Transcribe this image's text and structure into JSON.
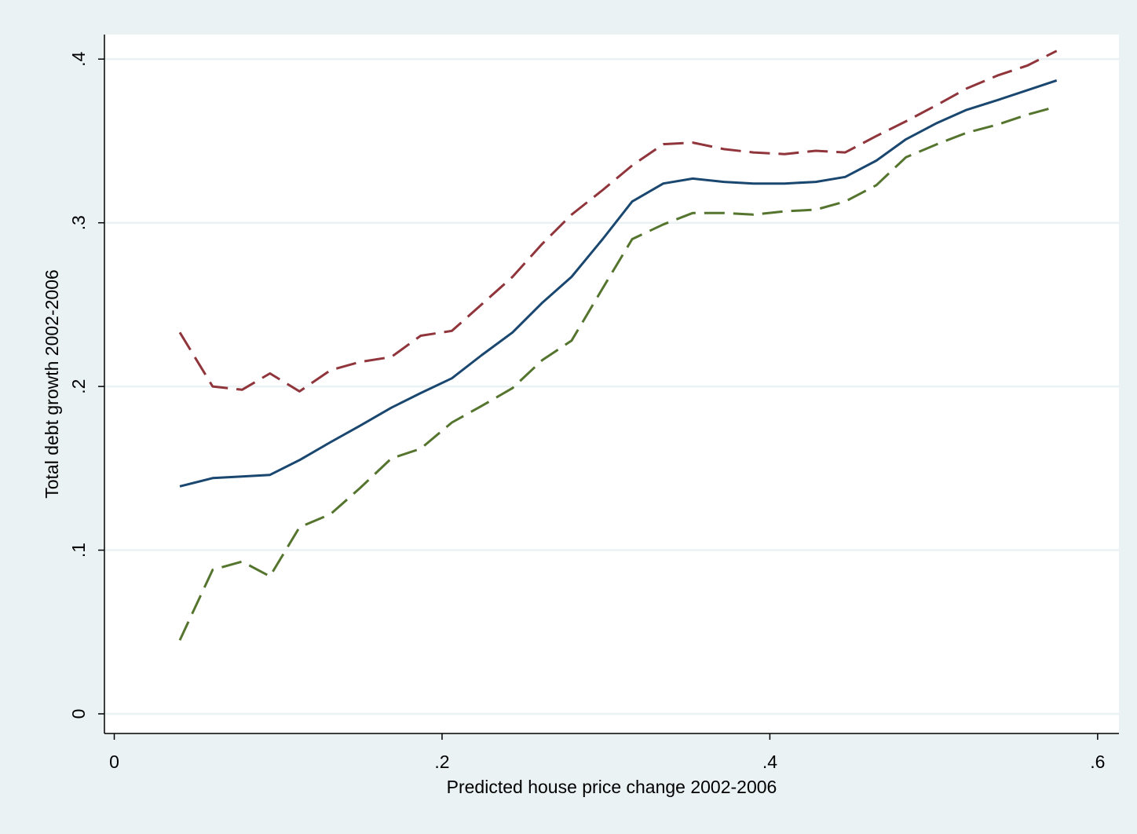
{
  "chart_data": {
    "type": "line",
    "title": "",
    "xlabel": "Predicted house price change 2002-2006",
    "ylabel": "Total debt growth 2002-2006",
    "xlim": [
      -0.006,
      0.613
    ],
    "ylim": [
      -0.012,
      0.415
    ],
    "x_ticks": [
      0,
      0.2,
      0.4,
      0.6
    ],
    "x_tick_labels": [
      "0",
      ".2",
      ".4",
      ".6"
    ],
    "y_ticks": [
      0,
      0.1,
      0.2,
      0.3,
      0.4
    ],
    "y_tick_labels": [
      "0",
      ".1",
      ".2",
      ".3",
      ".4"
    ],
    "grid": "horizontal",
    "legend": "none",
    "x": [
      0.04,
      0.06,
      0.078,
      0.095,
      0.113,
      0.132,
      0.15,
      0.169,
      0.187,
      0.206,
      0.224,
      0.243,
      0.261,
      0.279,
      0.298,
      0.316,
      0.335,
      0.353,
      0.372,
      0.39,
      0.409,
      0.428,
      0.446,
      0.465,
      0.483,
      0.502,
      0.52,
      0.539,
      0.557,
      0.575
    ],
    "series": [
      {
        "color": "#1a476f",
        "dash": "solid",
        "values": [
          0.139,
          0.144,
          0.145,
          0.146,
          0.155,
          0.166,
          0.176,
          0.187,
          0.196,
          0.205,
          0.219,
          0.233,
          0.251,
          0.267,
          0.29,
          0.313,
          0.324,
          0.327,
          0.325,
          0.324,
          0.324,
          0.325,
          0.328,
          0.338,
          0.351,
          0.361,
          0.369,
          0.375,
          0.381,
          0.387
        ]
      },
      {
        "color": "#90353b",
        "dash": "dashed",
        "values": [
          0.233,
          0.2,
          0.198,
          0.208,
          0.197,
          0.21,
          0.215,
          0.218,
          0.231,
          0.234,
          0.25,
          0.267,
          0.287,
          0.305,
          0.32,
          0.335,
          0.348,
          0.349,
          0.345,
          0.343,
          0.342,
          0.344,
          0.343,
          0.353,
          0.362,
          0.372,
          0.382,
          0.39,
          0.396,
          0.405
        ]
      },
      {
        "color": "#55752f",
        "dash": "dashed",
        "values": [
          0.045,
          0.088,
          0.093,
          0.084,
          0.114,
          0.122,
          0.138,
          0.156,
          0.162,
          0.178,
          0.188,
          0.199,
          0.216,
          0.228,
          0.26,
          0.29,
          0.299,
          0.306,
          0.306,
          0.305,
          0.307,
          0.308,
          0.313,
          0.323,
          0.34,
          0.348,
          0.355,
          0.36,
          0.366,
          0.371
        ]
      }
    ],
    "colors": {
      "background": "#eaf2f3",
      "plot_background": "#ffffff",
      "grid": "#eaf2f3"
    }
  }
}
